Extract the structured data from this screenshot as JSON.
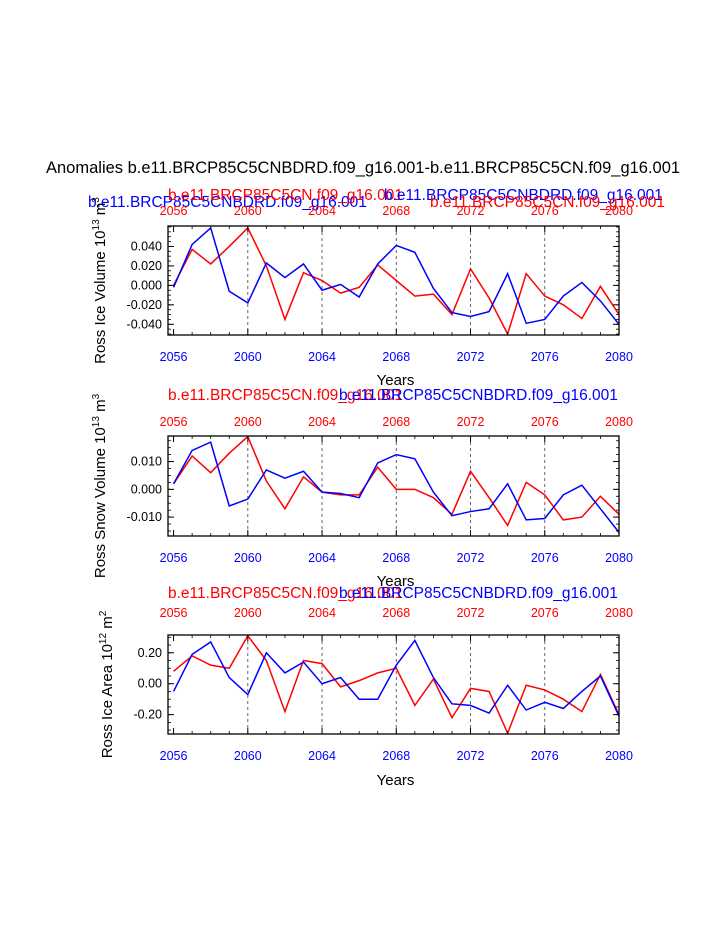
{
  "page": {
    "main_title": "Anomalies b.e11.BRCP85C5CNBDRD.f09_g16.001-b.e11.BRCP85C5CN.f09_g16.001",
    "overlap_labels": {
      "blue_run": "b.e11.BRCP85C5CNBDRD.f09_g16.001",
      "red_run": "b.e11.BRCP85C5CN.f09_g16.001",
      "mid_run": "b.e11.BRCP85C5CNBDRD.f09_g16.001",
      "right_run": "b.e11.BRCP85C5CN.f09_g16.001"
    }
  },
  "colors": {
    "ctrl": "#ff0000",
    "exp": "#0000ff",
    "axis": "#000000",
    "grid": "#555555"
  },
  "chart_data": [
    {
      "type": "line",
      "id": "volume",
      "ylabel_main": "Ross Ice Volume 10",
      "ylabel_sup": "13",
      "ylabel_unit": " m",
      "ylabel_unit_sup": "3",
      "xlabel": "Years",
      "top_labels": {
        "red": "b.e11.BRCP85C5CN.f09_g16.001",
        "blue": "b.e11.BRCP85C5CNBDRD.f09_g16.001"
      },
      "xlim": [
        2055.7,
        2080
      ],
      "ylim": [
        -0.051,
        0.061
      ],
      "yticks": [
        -0.04,
        -0.02,
        0.0,
        0.02,
        0.04
      ],
      "ytick_labels": [
        "-0.040",
        "-0.020",
        "0.000",
        "0.020",
        "0.040"
      ],
      "xticks": [
        2056,
        2060,
        2064,
        2068,
        2072,
        2076,
        2080
      ],
      "gridlines_x": [
        2060,
        2064,
        2068,
        2072,
        2076
      ],
      "x": [
        2056,
        2057,
        2058,
        2059,
        2060,
        2061,
        2062,
        2063,
        2064,
        2065,
        2066,
        2067,
        2068,
        2069,
        2070,
        2071,
        2072,
        2073,
        2074,
        2075,
        2076,
        2077,
        2078,
        2079,
        2080
      ],
      "series": [
        {
          "name": "b.e11.BRCP85C5CN.f09_g16.001",
          "color": "#ff0000",
          "values": [
            0.0,
            0.037,
            0.022,
            0.04,
            0.059,
            0.02,
            -0.035,
            0.013,
            0.005,
            -0.008,
            -0.002,
            0.021,
            0.005,
            -0.011,
            -0.009,
            -0.03,
            0.017,
            -0.013,
            -0.05,
            0.012,
            -0.011,
            -0.02,
            -0.034,
            -0.001,
            -0.03
          ]
        },
        {
          "name": "b.e11.BRCP85C5CNBDRD.f09_g16.001",
          "color": "#0000ff",
          "values": [
            -0.002,
            0.042,
            0.059,
            -0.006,
            -0.018,
            0.023,
            0.008,
            0.022,
            -0.005,
            0.001,
            -0.012,
            0.022,
            0.041,
            0.034,
            -0.003,
            -0.028,
            -0.032,
            -0.027,
            0.012,
            -0.039,
            -0.035,
            -0.011,
            0.003,
            -0.016,
            -0.04
          ]
        }
      ]
    },
    {
      "type": "line",
      "id": "snow",
      "ylabel_main": "Ross Snow Volume 10",
      "ylabel_sup": "13",
      "ylabel_unit": " m",
      "ylabel_unit_sup": "3",
      "xlabel": "Years",
      "top_labels": {
        "red": "b.e11.BRCP85C5CN.f09_g16.001",
        "blue": "b.e11.BRCP85C5CNBDRD.f09_g16.001"
      },
      "xlim": [
        2055.7,
        2080
      ],
      "ylim": [
        -0.0168,
        0.0192
      ],
      "yticks": [
        -0.01,
        0.0,
        0.01
      ],
      "ytick_labels": [
        "-0.010",
        "0.000",
        "0.010"
      ],
      "xticks": [
        2056,
        2060,
        2064,
        2068,
        2072,
        2076,
        2080
      ],
      "gridlines_x": [
        2060,
        2064,
        2068,
        2072,
        2076
      ],
      "x": [
        2056,
        2057,
        2058,
        2059,
        2060,
        2061,
        2062,
        2063,
        2064,
        2065,
        2066,
        2067,
        2068,
        2069,
        2070,
        2071,
        2072,
        2073,
        2074,
        2075,
        2076,
        2077,
        2078,
        2079,
        2080
      ],
      "series": [
        {
          "name": "b.e11.BRCP85C5CN.f09_g16.001",
          "color": "#ff0000",
          "values": [
            0.002,
            0.012,
            0.006,
            0.013,
            0.019,
            0.003,
            -0.007,
            0.0045,
            -0.001,
            -0.002,
            -0.002,
            0.008,
            0.0,
            0.0,
            -0.003,
            -0.009,
            0.0065,
            -0.003,
            -0.013,
            0.0025,
            -0.002,
            -0.011,
            -0.01,
            -0.0025,
            -0.009
          ]
        },
        {
          "name": "b.e11.BRCP85C5CNBDRD.f09_g16.001",
          "color": "#0000ff",
          "values": [
            0.002,
            0.014,
            0.017,
            -0.006,
            -0.0035,
            0.007,
            0.004,
            0.0065,
            -0.001,
            -0.0015,
            -0.003,
            0.0095,
            0.0125,
            0.011,
            -0.001,
            -0.0095,
            -0.008,
            -0.007,
            0.002,
            -0.011,
            -0.0105,
            -0.002,
            0.0015,
            -0.007,
            -0.0155
          ]
        }
      ]
    },
    {
      "type": "line",
      "id": "area",
      "ylabel_main": "Ross Ice Area 10",
      "ylabel_sup": "12",
      "ylabel_unit": " m",
      "ylabel_unit_sup": "2",
      "xlabel": "Years",
      "top_labels": {
        "red": "b.e11.BRCP85C5CN.f09_g16.001",
        "blue": "b.e11.BRCP85C5CNBDRD.f09_g16.001"
      },
      "xlim": [
        2055.7,
        2080
      ],
      "ylim": [
        -0.325,
        0.315
      ],
      "yticks": [
        -0.2,
        0.0,
        0.2
      ],
      "ytick_labels": [
        "-0.20",
        "0.00",
        "0.20"
      ],
      "xticks": [
        2056,
        2060,
        2064,
        2068,
        2072,
        2076,
        2080
      ],
      "gridlines_x": [
        2060,
        2064,
        2068,
        2072,
        2076
      ],
      "x": [
        2056,
        2057,
        2058,
        2059,
        2060,
        2061,
        2062,
        2063,
        2064,
        2065,
        2066,
        2067,
        2068,
        2069,
        2070,
        2071,
        2072,
        2073,
        2074,
        2075,
        2076,
        2077,
        2078,
        2079,
        2080
      ],
      "series": [
        {
          "name": "b.e11.BRCP85C5CN.f09_g16.001",
          "color": "#ff0000",
          "values": [
            0.08,
            0.18,
            0.12,
            0.1,
            0.31,
            0.15,
            -0.18,
            0.15,
            0.13,
            -0.02,
            0.02,
            0.07,
            0.1,
            -0.14,
            0.03,
            -0.22,
            -0.03,
            -0.05,
            -0.32,
            -0.01,
            -0.04,
            -0.1,
            -0.18,
            0.06,
            -0.2
          ]
        },
        {
          "name": "b.e11.BRCP85C5CNBDRD.f09_g16.001",
          "color": "#0000ff",
          "values": [
            -0.05,
            0.19,
            0.27,
            0.04,
            -0.07,
            0.2,
            0.07,
            0.14,
            0.0,
            0.04,
            -0.1,
            -0.1,
            0.12,
            0.28,
            0.04,
            -0.13,
            -0.14,
            -0.19,
            -0.01,
            -0.17,
            -0.12,
            -0.16,
            -0.05,
            0.05,
            -0.21
          ]
        }
      ]
    }
  ]
}
